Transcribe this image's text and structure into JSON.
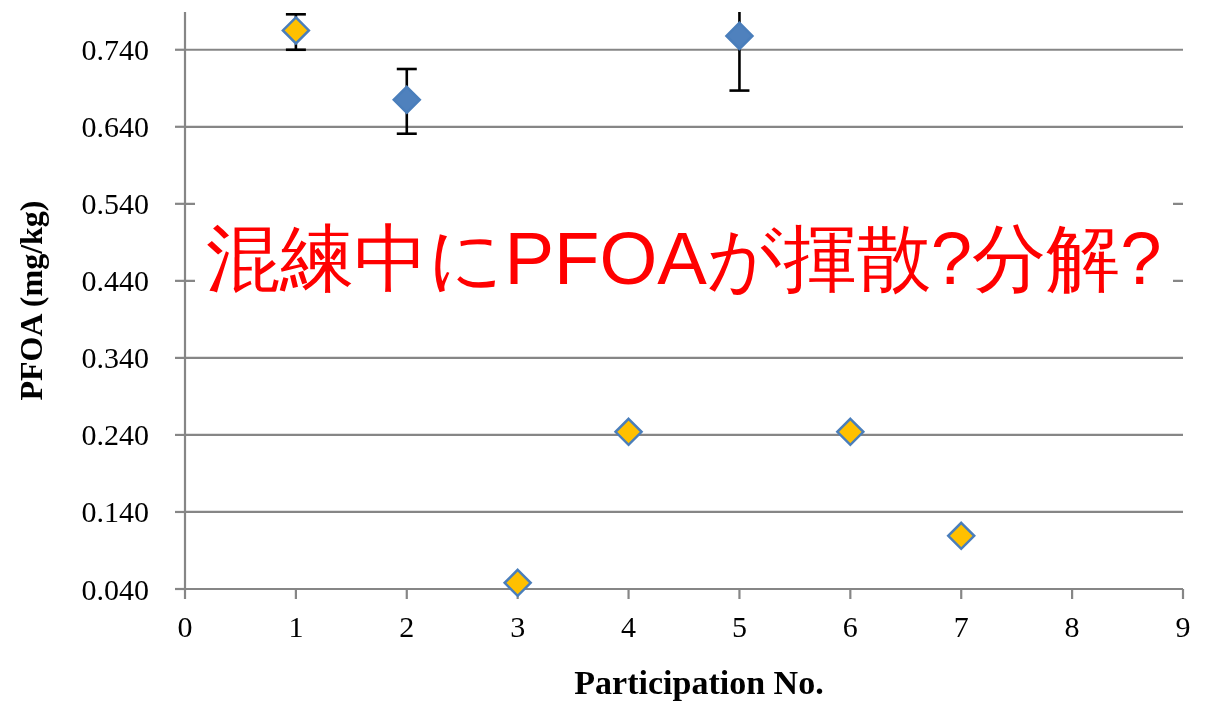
{
  "chart_data": {
    "type": "scatter",
    "xlabel": "Participation No.",
    "ylabel": "PFOA (mg/kg)",
    "annotations": [
      "混練中にPFOAが揮散?分解?"
    ],
    "xlim": [
      0,
      9
    ],
    "xticks": [
      0,
      1,
      2,
      3,
      4,
      5,
      6,
      7,
      8,
      9
    ],
    "ylim": [
      0.04,
      0.789
    ],
    "yticks": [
      {
        "value": 0.04,
        "label": "0.040"
      },
      {
        "value": 0.14,
        "label": "0.140"
      },
      {
        "value": 0.24,
        "label": "0.240"
      },
      {
        "value": 0.34,
        "label": "0.340"
      },
      {
        "value": 0.44,
        "label": "0.440"
      },
      {
        "value": 0.54,
        "label": "0.540"
      },
      {
        "value": 0.64,
        "label": "0.640"
      },
      {
        "value": 0.74,
        "label": "0.740"
      }
    ],
    "grid": "y",
    "marker": "diamond",
    "series": [
      {
        "color": "#4f81bd",
        "x": [
          2,
          5
        ],
        "values": [
          0.675,
          0.758
        ],
        "errors": [
          [
            0.631,
            0.715
          ],
          [
            0.687,
            0.789
          ]
        ]
      },
      {
        "color": "#ffc000",
        "x": [
          1,
          3,
          4,
          6,
          7
        ],
        "values": [
          0.765,
          0.048,
          0.244,
          0.244,
          0.109
        ],
        "errors": [
          [
            0.74,
            0.786
          ],
          null,
          null,
          null,
          null
        ]
      }
    ]
  }
}
